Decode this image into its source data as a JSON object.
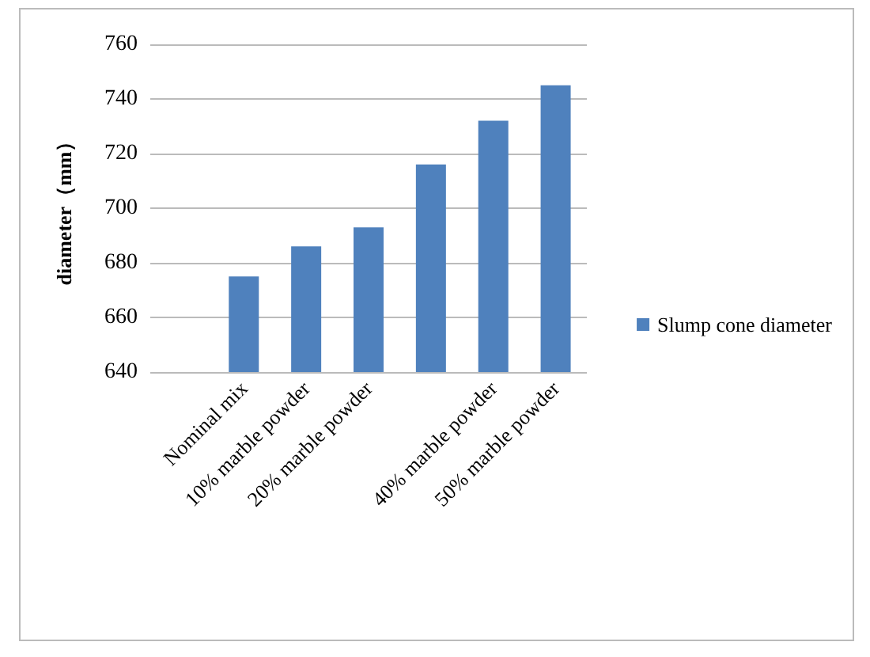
{
  "chart_data": {
    "type": "bar",
    "ylabel": "diameter（mm）",
    "categories": [
      null,
      "Nominal mix",
      "10% marble powder",
      "20% marble powder",
      null,
      "40% marble powder",
      "50% marble powder"
    ],
    "series": [
      {
        "name": "Slump cone diameter",
        "color": "#4f81bd",
        "values": [
          null,
          675,
          686,
          693,
          716,
          732,
          745
        ]
      }
    ],
    "ylim": [
      640,
      760
    ],
    "yticks": [
      640,
      660,
      680,
      700,
      720,
      740,
      760
    ],
    "grid": "y",
    "legend": "right"
  }
}
